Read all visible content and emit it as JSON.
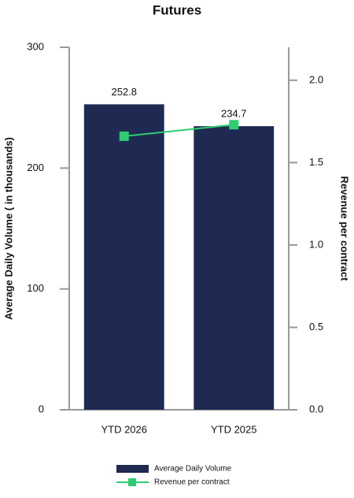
{
  "chart_data": {
    "type": "bar",
    "title": "Futures",
    "y_label": "Average Daily Volume ( in thousands)",
    "y2_label": "Revenue per contract",
    "categories": [
      "YTD 2026",
      "YTD 2025"
    ],
    "series": [
      {
        "name": "Average Daily Volume",
        "type": "bar",
        "color": "#1f2a52",
        "values": [
          252.8,
          234.7
        ]
      },
      {
        "name": "Revenue per contract",
        "type": "line",
        "axis": "y2",
        "color": "#2ecc71",
        "values": [
          1.66,
          1.73
        ]
      }
    ],
    "ylim": [
      0,
      300
    ],
    "yticks": [
      0,
      100,
      200,
      300
    ],
    "y2lim": [
      0,
      2.2
    ],
    "y2ticks": [
      {
        "value": 0,
        "label": "0.0"
      },
      0.5,
      {
        "value": 1,
        "label": "1.0"
      },
      1.5,
      {
        "value": 2,
        "label": "2.0"
      }
    ],
    "legend": "bottom"
  }
}
